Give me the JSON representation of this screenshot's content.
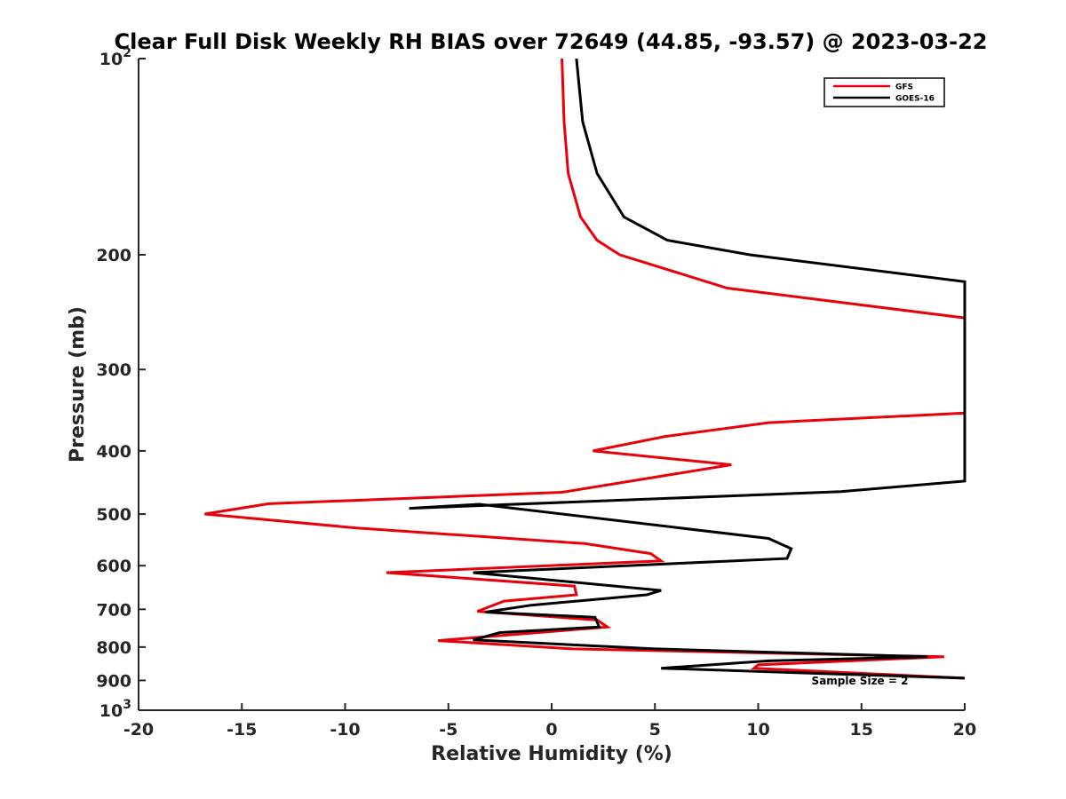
{
  "chart_data": {
    "type": "line",
    "title": "Clear Full Disk Weekly RH BIAS over 72649 (44.85, -93.57) @ 2023-03-22",
    "xlabel": "Relative Humidity (%)",
    "ylabel": "Pressure (mb)",
    "xlim": [
      -20,
      20
    ],
    "ylim": [
      100,
      1000
    ],
    "y_scale": "log",
    "y_reversed": true,
    "grid": false,
    "legend_position": "top-right",
    "x_ticks": [
      -20,
      -15,
      -10,
      -5,
      0,
      5,
      10,
      15,
      20
    ],
    "x_tick_labels": [
      "-20",
      "-15",
      "-10",
      "-5",
      "0",
      "5",
      "10",
      "15",
      "20"
    ],
    "y_ticks": [
      100,
      200,
      300,
      400,
      500,
      600,
      700,
      800,
      900,
      1000
    ],
    "y_tick_labels": [
      {
        "base": "10",
        "exp": "2"
      },
      {
        "base": "200",
        "exp": ""
      },
      {
        "base": "300",
        "exp": ""
      },
      {
        "base": "400",
        "exp": ""
      },
      {
        "base": "500",
        "exp": ""
      },
      {
        "base": "600",
        "exp": ""
      },
      {
        "base": "700",
        "exp": ""
      },
      {
        "base": "800",
        "exp": ""
      },
      {
        "base": "900",
        "exp": ""
      },
      {
        "base": "10",
        "exp": "3"
      }
    ],
    "series": [
      {
        "name": "GFS",
        "color": "#e8000b",
        "points": [
          [
            0.5,
            100
          ],
          [
            0.6,
            125
          ],
          [
            0.8,
            150
          ],
          [
            1.4,
            175
          ],
          [
            2.2,
            190
          ],
          [
            3.3,
            200
          ],
          [
            8.5,
            225
          ],
          [
            20,
            250
          ],
          [
            20,
            350
          ],
          [
            10.5,
            362
          ],
          [
            5.5,
            380
          ],
          [
            2.0,
            400
          ],
          [
            8.7,
            420
          ],
          [
            0.5,
            463
          ],
          [
            -13.7,
            482
          ],
          [
            -16.8,
            500
          ],
          [
            -9.5,
            525
          ],
          [
            1.6,
            555
          ],
          [
            4.8,
            575
          ],
          [
            5.3,
            590
          ],
          [
            -8.0,
            615
          ],
          [
            1.1,
            645
          ],
          [
            1.2,
            665
          ],
          [
            -2.3,
            680
          ],
          [
            -3.6,
            705
          ],
          [
            2.2,
            727
          ],
          [
            2.7,
            745
          ],
          [
            -5.5,
            782
          ],
          [
            1.0,
            805
          ],
          [
            19.0,
            828
          ],
          [
            10.0,
            852
          ],
          [
            9.8,
            862
          ],
          [
            20,
            893
          ]
        ]
      },
      {
        "name": "GOES-16",
        "color": "#000000",
        "points": [
          [
            1.2,
            100
          ],
          [
            1.5,
            125
          ],
          [
            2.2,
            150
          ],
          [
            3.5,
            175
          ],
          [
            5.6,
            190
          ],
          [
            9.6,
            200
          ],
          [
            20,
            220
          ],
          [
            20,
            445
          ],
          [
            14.0,
            462
          ],
          [
            -6.9,
            490
          ],
          [
            -3.5,
            483
          ],
          [
            10.5,
            545
          ],
          [
            11.6,
            565
          ],
          [
            11.4,
            585
          ],
          [
            -3.8,
            615
          ],
          [
            5.3,
            655
          ],
          [
            4.6,
            665
          ],
          [
            -1.0,
            690
          ],
          [
            -3.2,
            707
          ],
          [
            2.1,
            720
          ],
          [
            2.3,
            745
          ],
          [
            -2.5,
            760
          ],
          [
            -3.8,
            780
          ],
          [
            5.0,
            805
          ],
          [
            18.2,
            828
          ],
          [
            10.5,
            840
          ],
          [
            5.3,
            862
          ],
          [
            20,
            893
          ]
        ]
      }
    ],
    "annotation": "Sample Size = 2"
  }
}
